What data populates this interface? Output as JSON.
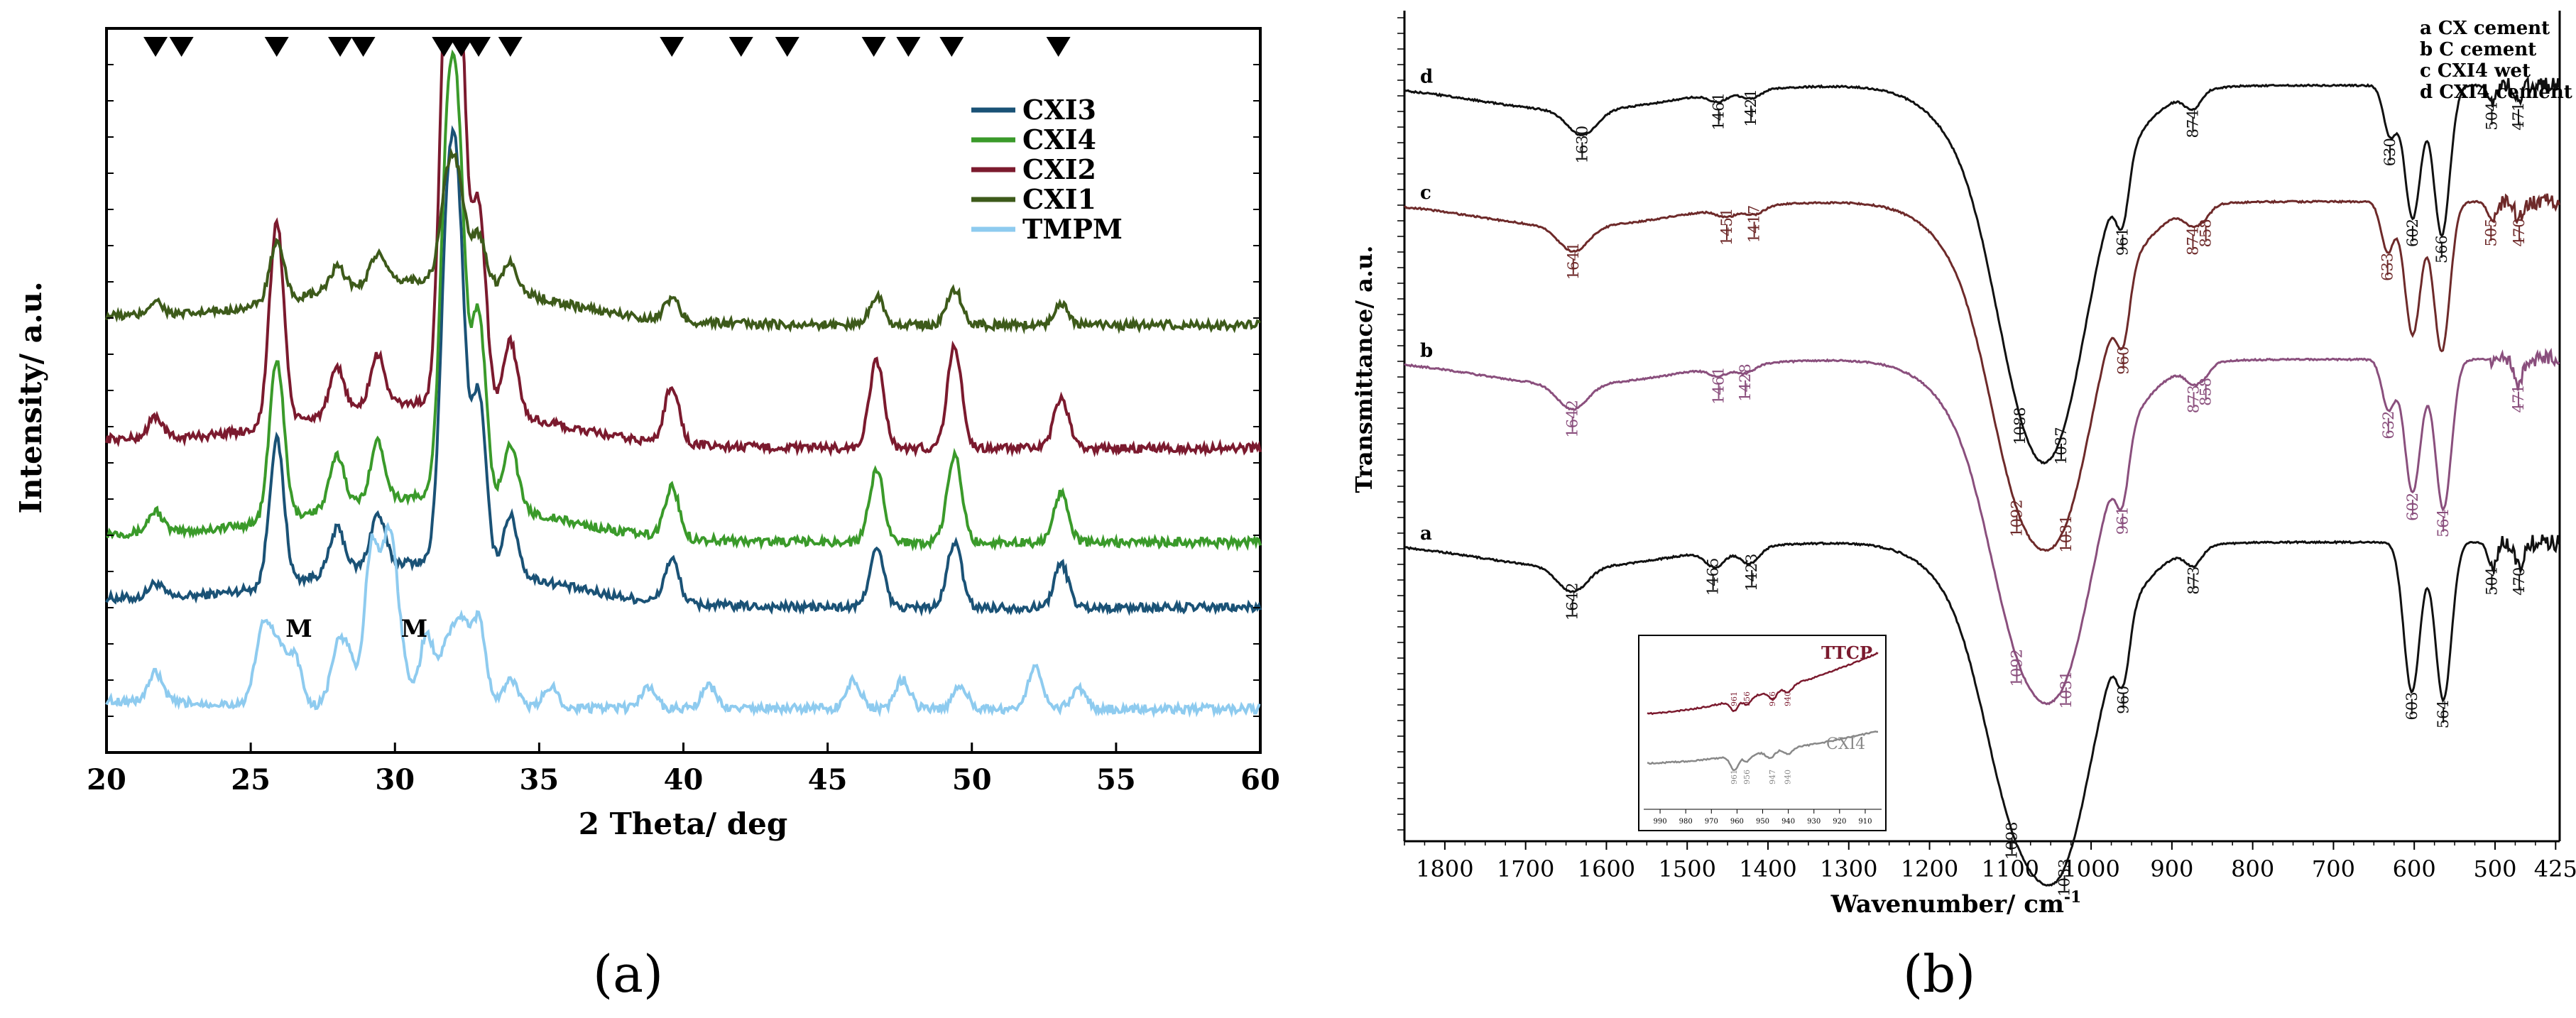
{
  "chart_data": [
    {
      "id": "xrd",
      "type": "line",
      "panel_label": "(a)",
      "xlabel": "2 Theta/ deg",
      "ylabel": "Intensity/ a.u.",
      "xlim": [
        20,
        60
      ],
      "x_ticks": [
        "20",
        "25",
        "30",
        "35",
        "40",
        "45",
        "50",
        "55",
        "60"
      ],
      "legend_position": "top-right",
      "series": [
        {
          "name": "CXI3",
          "color": "#1a5276",
          "offset": 0.2,
          "peaks": [
            [
              21.7,
              0.02
            ],
            [
              25.9,
              0.2
            ],
            [
              28.0,
              0.06
            ],
            [
              29.4,
              0.07
            ],
            [
              31.8,
              0.4
            ],
            [
              32.2,
              0.42
            ],
            [
              32.9,
              0.24
            ],
            [
              34.0,
              0.08
            ],
            [
              39.6,
              0.06
            ],
            [
              46.7,
              0.08
            ],
            [
              49.4,
              0.09
            ],
            [
              53.1,
              0.06
            ]
          ]
        },
        {
          "name": "CXI4",
          "color": "#3a9a2a",
          "offset": 0.29,
          "peaks": [
            [
              21.7,
              0.03
            ],
            [
              25.9,
              0.22
            ],
            [
              28.0,
              0.07
            ],
            [
              29.4,
              0.08
            ],
            [
              31.8,
              0.42
            ],
            [
              32.2,
              0.43
            ],
            [
              32.9,
              0.26
            ],
            [
              34.0,
              0.09
            ],
            [
              39.6,
              0.07
            ],
            [
              46.7,
              0.1
            ],
            [
              49.4,
              0.12
            ],
            [
              53.1,
              0.07
            ]
          ]
        },
        {
          "name": "CXI2",
          "color": "#7b1a2e",
          "offset": 0.42,
          "peaks": [
            [
              21.7,
              0.03
            ],
            [
              25.9,
              0.28
            ],
            [
              28.0,
              0.06
            ],
            [
              29.4,
              0.07
            ],
            [
              31.8,
              0.55
            ],
            [
              32.2,
              0.56
            ],
            [
              32.9,
              0.28
            ],
            [
              34.0,
              0.1
            ],
            [
              39.6,
              0.08
            ],
            [
              46.7,
              0.12
            ],
            [
              49.4,
              0.14
            ],
            [
              53.1,
              0.07
            ]
          ]
        },
        {
          "name": "CXI1",
          "color": "#3d5a1a",
          "offset": 0.59,
          "peaks": [
            [
              21.7,
              0.02
            ],
            [
              25.9,
              0.08
            ],
            [
              28.0,
              0.03
            ],
            [
              29.4,
              0.04
            ],
            [
              31.8,
              0.12
            ],
            [
              32.2,
              0.12
            ],
            [
              32.9,
              0.07
            ],
            [
              34.0,
              0.04
            ],
            [
              39.6,
              0.03
            ],
            [
              46.7,
              0.04
            ],
            [
              49.4,
              0.05
            ],
            [
              53.1,
              0.03
            ]
          ]
        },
        {
          "name": "TMPM",
          "color": "#8ecbef",
          "offset": 0.06,
          "peaks": [
            [
              21.7,
              0.04
            ],
            [
              25.4,
              0.1
            ],
            [
              25.9,
              0.08
            ],
            [
              26.5,
              0.07
            ],
            [
              28.0,
              0.07
            ],
            [
              28.4,
              0.06
            ],
            [
              29.2,
              0.22
            ],
            [
              29.8,
              0.22
            ],
            [
              30.2,
              0.06
            ],
            [
              31.1,
              0.1
            ],
            [
              31.8,
              0.08
            ],
            [
              32.3,
              0.11
            ],
            [
              32.9,
              0.12
            ],
            [
              34.0,
              0.04
            ],
            [
              35.4,
              0.03
            ],
            [
              38.8,
              0.03
            ],
            [
              40.9,
              0.03
            ],
            [
              45.9,
              0.04
            ],
            [
              47.6,
              0.04
            ],
            [
              49.6,
              0.03
            ],
            [
              52.2,
              0.06
            ],
            [
              53.7,
              0.03
            ]
          ]
        }
      ],
      "markers": [
        21.7,
        22.6,
        25.9,
        28.1,
        28.9,
        31.7,
        32.3,
        32.9,
        34.0,
        39.6,
        42.0,
        43.6,
        46.6,
        47.8,
        49.3,
        53.0
      ],
      "annotations": [
        {
          "text": "M",
          "x": 26.5
        },
        {
          "text": "M",
          "x": 30.5
        }
      ]
    },
    {
      "id": "ftir",
      "type": "line",
      "panel_label": "(b)",
      "xlabel": "Wavenumber/ cm",
      "xlabel_sup": "-1",
      "ylabel": "Transmittance/ a.u.",
      "xlim": [
        1850,
        420
      ],
      "x_ticks": [
        "1800",
        "1700",
        "1600",
        "1500",
        "1400",
        "1300",
        "1200",
        "1100",
        "1000",
        "900",
        "800",
        "700",
        "600",
        "500",
        "425"
      ],
      "legend": [
        "a CX cement",
        "b C cement",
        "c CXI4 wet",
        "d CXI4 cement"
      ],
      "legend_position": "top-right",
      "series": [
        {
          "name": "a",
          "color": "#111111",
          "offset": 0.64,
          "bands": [
            [
              1642,
              0.03,
              18
            ],
            [
              1465,
              0.02,
              12
            ],
            [
              1423,
              0.02,
              12
            ],
            [
              1098,
              0.14,
              35
            ],
            [
              1033,
              0.18,
              35
            ],
            [
              960,
              0.07,
              8
            ],
            [
              873,
              0.02,
              10
            ],
            [
              603,
              0.18,
              10
            ],
            [
              564,
              0.19,
              10
            ],
            [
              504,
              0.03,
              5
            ],
            [
              470,
              0.03,
              5
            ]
          ],
          "labels": [
            {
              "text": "1642",
              "wn": 1642,
              "below": true
            },
            {
              "text": "1465",
              "wn": 1468,
              "below": true
            },
            {
              "text": "1423",
              "wn": 1420,
              "below": true
            },
            {
              "text": "1098",
              "wn": 1098,
              "below": true
            },
            {
              "text": "1033",
              "wn": 1033,
              "below": true
            },
            {
              "text": "960",
              "wn": 960,
              "below": true
            },
            {
              "text": "873",
              "wn": 873,
              "below": true
            },
            {
              "text": "603",
              "wn": 603,
              "below": true
            },
            {
              "text": "564",
              "wn": 564,
              "below": true
            },
            {
              "text": "504",
              "wn": 504,
              "below": true
            },
            {
              "text": "470",
              "wn": 470,
              "below": true
            }
          ]
        },
        {
          "name": "b",
          "color": "#8a4f7d",
          "offset": 0.42,
          "bands": [
            [
              1642,
              0.03,
              18
            ],
            [
              1461,
              0.01,
              12
            ],
            [
              1428,
              0.01,
              12
            ],
            [
              1092,
              0.14,
              35
            ],
            [
              1031,
              0.17,
              35
            ],
            [
              961,
              0.07,
              8
            ],
            [
              873,
              0.02,
              10
            ],
            [
              858,
              0.01,
              8
            ],
            [
              632,
              0.06,
              8
            ],
            [
              602,
              0.16,
              10
            ],
            [
              564,
              0.18,
              10
            ],
            [
              471,
              0.03,
              5
            ]
          ],
          "labels": [
            {
              "text": "1642",
              "wn": 1642
            },
            {
              "text": "1461",
              "wn": 1461
            },
            {
              "text": "1428",
              "wn": 1428
            },
            {
              "text": "1092",
              "wn": 1092
            },
            {
              "text": "1031",
              "wn": 1031
            },
            {
              "text": "961",
              "wn": 961
            },
            {
              "text": "873",
              "wn": 873
            },
            {
              "text": "858",
              "wn": 858
            },
            {
              "text": "632",
              "wn": 632
            },
            {
              "text": "602",
              "wn": 602
            },
            {
              "text": "564",
              "wn": 564
            },
            {
              "text": "471",
              "wn": 471
            }
          ]
        },
        {
          "name": "c",
          "color": "#6e2a2a",
          "offset": 0.23,
          "bands": [
            [
              1641,
              0.03,
              18
            ],
            [
              1451,
              0.01,
              12
            ],
            [
              1417,
              0.01,
              12
            ],
            [
              1092,
              0.15,
              35
            ],
            [
              1031,
              0.17,
              35
            ],
            [
              960,
              0.07,
              8
            ],
            [
              874,
              0.02,
              10
            ],
            [
              858,
              0.01,
              8
            ],
            [
              633,
              0.06,
              8
            ],
            [
              602,
              0.16,
              10
            ],
            [
              566,
              0.18,
              10
            ],
            [
              505,
              0.02,
              5
            ],
            [
              470,
              0.02,
              5
            ]
          ],
          "labels": [
            {
              "text": "1641",
              "wn": 1641
            },
            {
              "text": "1451",
              "wn": 1451
            },
            {
              "text": "1417",
              "wn": 1417
            },
            {
              "text": "1092",
              "wn": 1092
            },
            {
              "text": "1031",
              "wn": 1031
            },
            {
              "text": "960",
              "wn": 960
            },
            {
              "text": "874",
              "wn": 874
            },
            {
              "text": "858",
              "wn": 858
            },
            {
              "text": "633",
              "wn": 633
            },
            {
              "text": "505",
              "wn": 505
            },
            {
              "text": "470",
              "wn": 470
            }
          ]
        },
        {
          "name": "d",
          "color": "#111111",
          "offset": 0.09,
          "bands": [
            [
              1630,
              0.03,
              18
            ],
            [
              1461,
              0.01,
              12
            ],
            [
              1421,
              0.01,
              12
            ],
            [
              1088,
              0.15,
              35
            ],
            [
              1037,
              0.18,
              35
            ],
            [
              961,
              0.07,
              8
            ],
            [
              874,
              0.02,
              10
            ],
            [
              630,
              0.06,
              8
            ],
            [
              602,
              0.16,
              10
            ],
            [
              566,
              0.18,
              10
            ],
            [
              504,
              0.02,
              5
            ],
            [
              471,
              0.02,
              5
            ]
          ],
          "labels": [
            {
              "text": "1630",
              "wn": 1630
            },
            {
              "text": "1461",
              "wn": 1461
            },
            {
              "text": "1421",
              "wn": 1421
            },
            {
              "text": "1088",
              "wn": 1088
            },
            {
              "text": "1037",
              "wn": 1037
            },
            {
              "text": "961",
              "wn": 961
            },
            {
              "text": "874",
              "wn": 874
            },
            {
              "text": "630",
              "wn": 630
            },
            {
              "text": "602",
              "wn": 602
            },
            {
              "text": "566",
              "wn": 566
            },
            {
              "text": "504",
              "wn": 504
            },
            {
              "text": "471",
              "wn": 471
            }
          ]
        }
      ],
      "inset": {
        "series": [
          {
            "name": "TTCP",
            "color": "#7b1a2e"
          },
          {
            "name": "CXI4",
            "color": "#888888"
          }
        ],
        "ttcp_labels": [
          "961",
          "956",
          "946",
          "940"
        ],
        "cxi4_labels": [
          "961",
          "956",
          "947",
          "940"
        ],
        "x_ticks": [
          "990",
          "980",
          "970",
          "960",
          "950",
          "940",
          "930",
          "920",
          "910"
        ]
      }
    }
  ]
}
